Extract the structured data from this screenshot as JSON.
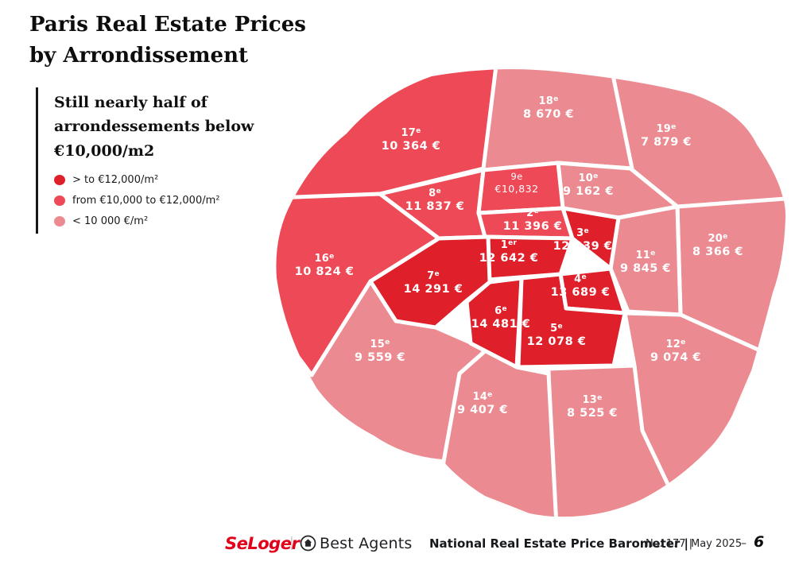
{
  "title": "Paris Real Estate Prices by Arrondissement",
  "colors": {
    "tier_high": "#df1f29",
    "tier_mid": "#ed4956",
    "tier_low": "#eb8a90",
    "brand_red": "#e2001a",
    "map_border": "#ffffff",
    "text": "#14161a"
  },
  "legend": {
    "heading": "Still nearly half of arrondessements below €10,000/m2",
    "items": [
      {
        "label": "> to €12,000/m²",
        "tier": "high"
      },
      {
        "label": "from €10,000 to €12,000/m²",
        "tier": "mid"
      },
      {
        "label": "< 10 000 €/m²",
        "tier": "low"
      }
    ]
  },
  "map": {
    "regions": [
      {
        "num": "1",
        "ordinal": "er",
        "value": "12 642 €",
        "tier": "high"
      },
      {
        "num": "2",
        "ordinal": "e",
        "value": "11 396 €",
        "tier": "mid"
      },
      {
        "num": "3",
        "ordinal": "e",
        "value": "12 239 €",
        "tier": "high"
      },
      {
        "num": "4",
        "ordinal": "e",
        "value": "13 689 €",
        "tier": "high"
      },
      {
        "num": "5",
        "ordinal": "e",
        "value": "12 078 €",
        "tier": "high"
      },
      {
        "num": "6",
        "ordinal": "e",
        "value": "14 481 €",
        "tier": "high"
      },
      {
        "num": "7",
        "ordinal": "e",
        "value": "14 291 €",
        "tier": "high"
      },
      {
        "num": "8",
        "ordinal": "e",
        "value": "11 837 €",
        "tier": "mid"
      },
      {
        "num": "9",
        "ordinal": "e",
        "value": "€10,832",
        "tier": "mid",
        "style": "annotation"
      },
      {
        "num": "10",
        "ordinal": "e",
        "value": "9 162 €",
        "tier": "low"
      },
      {
        "num": "11",
        "ordinal": "e",
        "value": "9 845 €",
        "tier": "low"
      },
      {
        "num": "12",
        "ordinal": "e",
        "value": "9 074 €",
        "tier": "low"
      },
      {
        "num": "13",
        "ordinal": "e",
        "value": "8 525 €",
        "tier": "low"
      },
      {
        "num": "14",
        "ordinal": "e",
        "value": "9 407 €",
        "tier": "low"
      },
      {
        "num": "15",
        "ordinal": "e",
        "value": "9 559 €",
        "tier": "low"
      },
      {
        "num": "16",
        "ordinal": "e",
        "value": "10 824 €",
        "tier": "mid"
      },
      {
        "num": "17",
        "ordinal": "e",
        "value": "10 364 €",
        "tier": "mid"
      },
      {
        "num": "18",
        "ordinal": "e",
        "value": "8 670 €",
        "tier": "low"
      },
      {
        "num": "19",
        "ordinal": "e",
        "value": "7 879 €",
        "tier": "low"
      },
      {
        "num": "20",
        "ordinal": "e",
        "value": "8 366 €",
        "tier": "low"
      }
    ]
  },
  "footer": {
    "seloger_logo": "SeLoger",
    "separator": "|",
    "best_agents": "Best Agents",
    "barometer": "National Real Estate Price Barometer |",
    "issue_no": "No. 177 |",
    "date": "May 2025",
    "dash": "–",
    "page_number": "6"
  },
  "chart_data": {
    "type": "choropleth",
    "title": "Paris Real Estate Prices by Arrondissement",
    "subtitle": "Still nearly half of arrondessements below €10,000/m2",
    "unit": "EUR per m2",
    "legend_bins": [
      {
        "label": "> to €12,000/m²",
        "color": "#df1f29"
      },
      {
        "label": "from €10,000 to €12,000/m²",
        "color": "#ed4956"
      },
      {
        "label": "< 10 000 €/m²",
        "color": "#eb8a90"
      }
    ],
    "regions": [
      {
        "arrondissement": "1er",
        "price_eur_m2": 12642
      },
      {
        "arrondissement": "2e",
        "price_eur_m2": 11396
      },
      {
        "arrondissement": "3e",
        "price_eur_m2": 12239
      },
      {
        "arrondissement": "4e",
        "price_eur_m2": 13689
      },
      {
        "arrondissement": "5e",
        "price_eur_m2": 12078
      },
      {
        "arrondissement": "6e",
        "price_eur_m2": 14481
      },
      {
        "arrondissement": "7e",
        "price_eur_m2": 14291
      },
      {
        "arrondissement": "8e",
        "price_eur_m2": 11837
      },
      {
        "arrondissement": "9e",
        "price_eur_m2": 10832
      },
      {
        "arrondissement": "10e",
        "price_eur_m2": 9162
      },
      {
        "arrondissement": "11e",
        "price_eur_m2": 9845
      },
      {
        "arrondissement": "12e",
        "price_eur_m2": 9074
      },
      {
        "arrondissement": "13e",
        "price_eur_m2": 8525
      },
      {
        "arrondissement": "14e",
        "price_eur_m2": 9407
      },
      {
        "arrondissement": "15e",
        "price_eur_m2": 9559
      },
      {
        "arrondissement": "16e",
        "price_eur_m2": 10824
      },
      {
        "arrondissement": "17e",
        "price_eur_m2": 10364
      },
      {
        "arrondissement": "18e",
        "price_eur_m2": 8670
      },
      {
        "arrondissement": "19e",
        "price_eur_m2": 7879
      },
      {
        "arrondissement": "20e",
        "price_eur_m2": 8366
      }
    ]
  }
}
